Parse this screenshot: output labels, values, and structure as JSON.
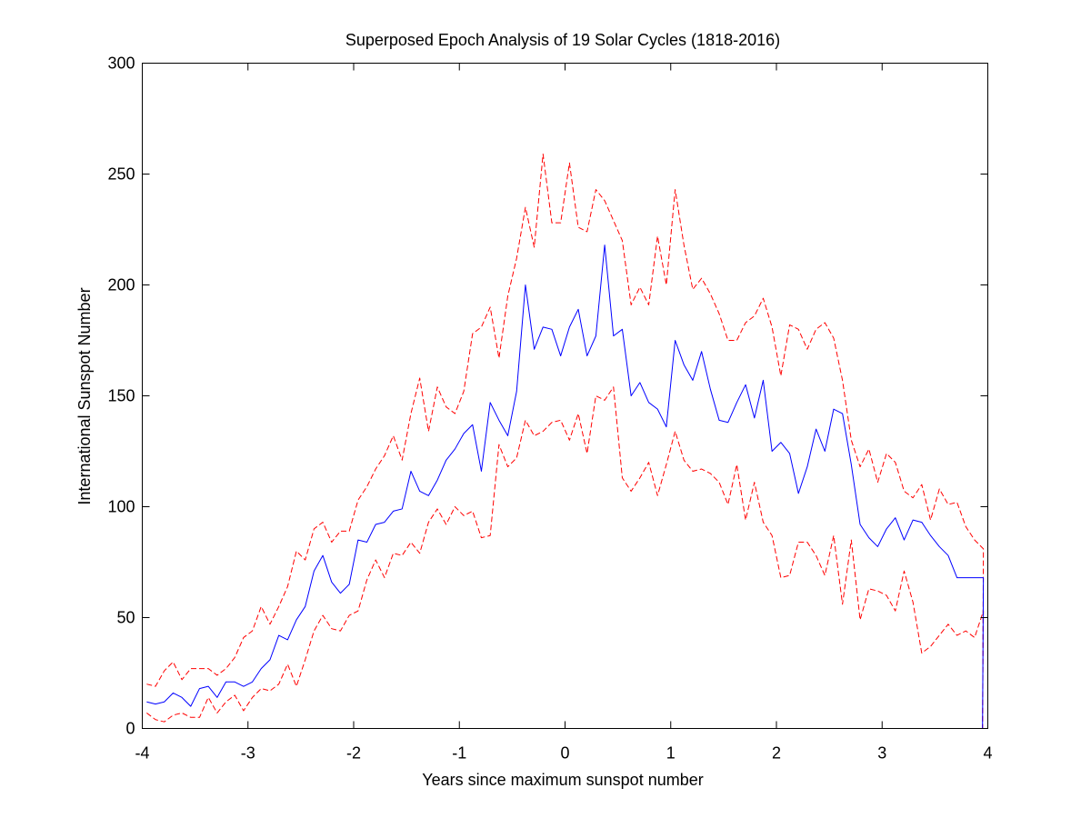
{
  "chart_data": {
    "type": "line",
    "title": "Superposed Epoch Analysis of 19 Solar Cycles (1818-2016)",
    "xlabel": "Years since maximum sunspot number",
    "ylabel": "International Sunspot Number",
    "xlim": [
      -4,
      4
    ],
    "ylim": [
      0,
      300
    ],
    "xticks": [
      -4,
      -3,
      -2,
      -1,
      0,
      1,
      2,
      3,
      4
    ],
    "yticks": [
      0,
      50,
      100,
      150,
      200,
      250,
      300
    ],
    "grid": false,
    "colors": {
      "mean": "#0000ff",
      "bounds": "#ff0000"
    },
    "x": [
      -3.9583,
      -3.875,
      -3.7917,
      -3.7083,
      -3.625,
      -3.5417,
      -3.4583,
      -3.375,
      -3.2917,
      -3.2083,
      -3.125,
      -3.0417,
      -2.9583,
      -2.875,
      -2.7917,
      -2.7083,
      -2.625,
      -2.5417,
      -2.4583,
      -2.375,
      -2.2917,
      -2.2083,
      -2.125,
      -2.0417,
      -1.9583,
      -1.875,
      -1.7917,
      -1.7083,
      -1.625,
      -1.5417,
      -1.4583,
      -1.375,
      -1.2917,
      -1.2083,
      -1.125,
      -1.0417,
      -0.9583,
      -0.875,
      -0.7917,
      -0.7083,
      -0.625,
      -0.5417,
      -0.4583,
      -0.375,
      -0.2917,
      -0.2083,
      -0.125,
      -0.0417,
      0.0417,
      0.125,
      0.2083,
      0.2917,
      0.375,
      0.4583,
      0.5417,
      0.625,
      0.7083,
      0.7917,
      0.875,
      0.9583,
      1.0417,
      1.125,
      1.2083,
      1.2917,
      1.375,
      1.4583,
      1.5417,
      1.625,
      1.7083,
      1.7917,
      1.875,
      1.9583,
      2.0417,
      2.125,
      2.2083,
      2.2917,
      2.375,
      2.4583,
      2.5417,
      2.625,
      2.7083,
      2.7917,
      2.875,
      2.9583,
      3.0417,
      3.125,
      3.2083,
      3.2917,
      3.375,
      3.4583,
      3.5417,
      3.625,
      3.7083,
      3.7917,
      3.875,
      3.9583
    ],
    "series": [
      {
        "values": [
          12,
          11,
          12,
          16,
          14,
          10,
          18,
          19,
          14,
          21,
          21,
          19,
          21,
          27,
          31,
          42,
          40,
          49,
          55,
          71,
          78,
          66,
          61,
          65,
          85,
          84,
          92,
          93,
          98,
          99,
          116,
          107,
          105,
          112,
          121,
          126,
          133,
          137,
          116,
          147,
          139,
          132,
          152,
          200,
          171,
          181,
          180,
          168,
          181,
          189,
          168,
          177,
          218,
          177,
          180,
          150,
          156,
          147,
          144,
          136,
          175,
          164,
          157,
          170,
          153,
          139,
          138,
          147,
          155,
          140,
          157,
          125,
          129,
          124,
          106,
          118,
          135,
          125,
          144,
          142,
          119,
          92,
          86,
          82,
          90,
          95,
          85,
          94,
          93,
          87,
          82,
          78,
          68,
          68,
          68,
          68
        ]
      },
      {
        "values": [
          20,
          19,
          26,
          30,
          22,
          27,
          27,
          27,
          24,
          27,
          32,
          41,
          44,
          55,
          47,
          55,
          64,
          80,
          76,
          90,
          93,
          84,
          89,
          89,
          103,
          109,
          117,
          123,
          132,
          121,
          142,
          158,
          134,
          154,
          145,
          142,
          152,
          178,
          181,
          190,
          167,
          195,
          212,
          235,
          217,
          259,
          228,
          228,
          255,
          226,
          224,
          243,
          238,
          229,
          220,
          191,
          199,
          191,
          222,
          200,
          243,
          218,
          198,
          203,
          196,
          187,
          175,
          175,
          183,
          186,
          194,
          181,
          159,
          182,
          180,
          171,
          180,
          183,
          176,
          157,
          130,
          118,
          126,
          111,
          124,
          120,
          107,
          104,
          110,
          94,
          108,
          101,
          102,
          91,
          85,
          81
        ]
      },
      {
        "values": [
          7,
          4,
          3,
          6,
          7,
          5,
          5,
          14,
          7,
          12,
          15,
          8,
          14,
          18,
          17,
          20,
          29,
          19,
          31,
          44,
          51,
          45,
          44,
          51,
          53,
          67,
          76,
          68,
          79,
          78,
          84,
          79,
          93,
          99,
          92,
          100,
          96,
          98,
          86,
          87,
          128,
          118,
          122,
          139,
          132,
          134,
          138,
          139,
          130,
          142,
          124,
          150,
          148,
          154,
          113,
          107,
          113,
          120,
          105,
          119,
          134,
          121,
          116,
          117,
          115,
          111,
          101,
          119,
          94,
          111,
          93,
          87,
          68,
          69,
          84,
          84,
          78,
          69,
          87,
          56,
          85,
          49,
          63,
          62,
          60,
          53,
          71,
          57,
          34,
          37,
          42,
          47,
          42,
          44,
          41,
          53
        ]
      }
    ]
  }
}
